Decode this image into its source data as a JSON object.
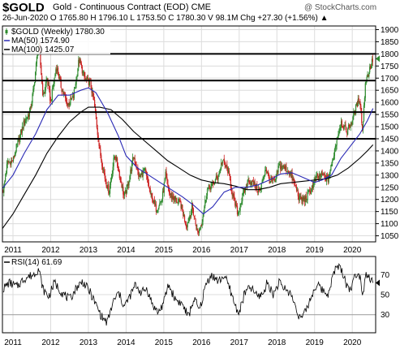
{
  "header": {
    "ticker": "$GOLD",
    "subtitle": "Gold - Continuous Contract (EOD) CME",
    "quote_line": "26-Jun-2020   O 1765.80  H 1796.10  L 1753.50  C 1780.30  V 98.1M  Chg +27.30 (+1.56%) ▲",
    "watermark": "@ StockCharts.com"
  },
  "colors": {
    "candle_up": "#2e8b2e",
    "candle_down": "#cc2222",
    "ma50": "#2a2ab5",
    "ma100": "#000000",
    "grid": "#dcdcdc",
    "rsi": "#000000"
  },
  "chart_data": [
    {
      "type": "candlestick",
      "legend": [
        {
          "label": "$GOLD (Weekly) 1780.30",
          "icon": "candle-icon"
        },
        {
          "label": "MA(50) 1574.90",
          "color": "#2a2ab5"
        },
        {
          "label": "MA(100) 1425.07",
          "color": "#000000"
        }
      ],
      "x_ticks": [
        "2011",
        "2012",
        "2013",
        "2014",
        "2015",
        "2016",
        "2017",
        "2018",
        "2019",
        "2020"
      ],
      "y_ticks": [
        1050,
        1100,
        1150,
        1200,
        1250,
        1300,
        1350,
        1400,
        1450,
        1500,
        1550,
        1600,
        1650,
        1700,
        1750,
        1800,
        1850,
        1900
      ],
      "ylim": [
        1025,
        1915
      ],
      "xlim": [
        2010.72,
        2020.62
      ],
      "horizontal_lines": [
        1800,
        1690,
        1560,
        1450
      ],
      "price_path": [
        [
          2010.75,
          1240
        ],
        [
          2010.85,
          1350
        ],
        [
          2011.0,
          1360
        ],
        [
          2011.1,
          1420
        ],
        [
          2011.3,
          1520
        ],
        [
          2011.45,
          1560
        ],
        [
          2011.55,
          1660
        ],
        [
          2011.68,
          1850
        ],
        [
          2011.8,
          1620
        ],
        [
          2011.9,
          1700
        ],
        [
          2012.0,
          1600
        ],
        [
          2012.15,
          1750
        ],
        [
          2012.3,
          1650
        ],
        [
          2012.45,
          1590
        ],
        [
          2012.6,
          1620
        ],
        [
          2012.75,
          1775
        ],
        [
          2012.9,
          1700
        ],
        [
          2013.05,
          1680
        ],
        [
          2013.15,
          1600
        ],
        [
          2013.3,
          1400
        ],
        [
          2013.45,
          1280
        ],
        [
          2013.55,
          1230
        ],
        [
          2013.7,
          1390
        ],
        [
          2013.8,
          1320
        ],
        [
          2013.95,
          1210
        ],
        [
          2014.05,
          1260
        ],
        [
          2014.2,
          1380
        ],
        [
          2014.35,
          1290
        ],
        [
          2014.5,
          1320
        ],
        [
          2014.65,
          1220
        ],
        [
          2014.8,
          1160
        ],
        [
          2014.95,
          1200
        ],
        [
          2015.05,
          1300
        ],
        [
          2015.15,
          1220
        ],
        [
          2015.3,
          1200
        ],
        [
          2015.45,
          1180
        ],
        [
          2015.6,
          1090
        ],
        [
          2015.75,
          1170
        ],
        [
          2015.9,
          1060
        ],
        [
          2016.0,
          1100
        ],
        [
          2016.15,
          1240
        ],
        [
          2016.3,
          1260
        ],
        [
          2016.45,
          1300
        ],
        [
          2016.55,
          1360
        ],
        [
          2016.7,
          1320
        ],
        [
          2016.85,
          1200
        ],
        [
          2016.97,
          1140
        ],
        [
          2017.1,
          1220
        ],
        [
          2017.25,
          1280
        ],
        [
          2017.4,
          1260
        ],
        [
          2017.55,
          1230
        ],
        [
          2017.7,
          1330
        ],
        [
          2017.8,
          1280
        ],
        [
          2017.95,
          1270
        ],
        [
          2018.05,
          1340
        ],
        [
          2018.2,
          1330
        ],
        [
          2018.35,
          1310
        ],
        [
          2018.5,
          1250
        ],
        [
          2018.6,
          1200
        ],
        [
          2018.75,
          1200
        ],
        [
          2018.9,
          1240
        ],
        [
          2019.05,
          1290
        ],
        [
          2019.2,
          1300
        ],
        [
          2019.35,
          1280
        ],
        [
          2019.45,
          1340
        ],
        [
          2019.55,
          1420
        ],
        [
          2019.7,
          1520
        ],
        [
          2019.85,
          1480
        ],
        [
          2019.97,
          1515
        ],
        [
          2020.1,
          1580
        ],
        [
          2020.2,
          1620
        ],
        [
          2020.27,
          1480
        ],
        [
          2020.35,
          1690
        ],
        [
          2020.45,
          1730
        ],
        [
          2020.55,
          1780
        ]
      ],
      "ma50_path": [
        [
          2010.72,
          1245
        ],
        [
          2011.0,
          1300
        ],
        [
          2011.3,
          1390
        ],
        [
          2011.6,
          1470
        ],
        [
          2011.9,
          1570
        ],
        [
          2012.2,
          1630
        ],
        [
          2012.5,
          1630
        ],
        [
          2012.8,
          1650
        ],
        [
          2013.0,
          1660
        ],
        [
          2013.2,
          1640
        ],
        [
          2013.5,
          1560
        ],
        [
          2013.8,
          1460
        ],
        [
          2014.0,
          1380
        ],
        [
          2014.3,
          1330
        ],
        [
          2014.6,
          1300
        ],
        [
          2014.9,
          1270
        ],
        [
          2015.2,
          1240
        ],
        [
          2015.5,
          1210
        ],
        [
          2015.8,
          1175
        ],
        [
          2016.05,
          1140
        ],
        [
          2016.3,
          1170
        ],
        [
          2016.6,
          1230
        ],
        [
          2016.9,
          1250
        ],
        [
          2017.2,
          1250
        ],
        [
          2017.5,
          1260
        ],
        [
          2017.8,
          1280
        ],
        [
          2018.1,
          1305
        ],
        [
          2018.4,
          1310
        ],
        [
          2018.7,
          1290
        ],
        [
          2019.0,
          1270
        ],
        [
          2019.2,
          1280
        ],
        [
          2019.45,
          1300
        ],
        [
          2019.7,
          1370
        ],
        [
          2019.95,
          1420
        ],
        [
          2020.2,
          1470
        ],
        [
          2020.4,
          1525
        ],
        [
          2020.55,
          1575
        ]
      ],
      "ma100_path": [
        [
          2010.72,
          1080
        ],
        [
          2011.0,
          1140
        ],
        [
          2011.3,
          1220
        ],
        [
          2011.6,
          1300
        ],
        [
          2011.9,
          1390
        ],
        [
          2012.2,
          1460
        ],
        [
          2012.5,
          1520
        ],
        [
          2012.8,
          1560
        ],
        [
          2013.0,
          1580
        ],
        [
          2013.3,
          1580
        ],
        [
          2013.6,
          1570
        ],
        [
          2013.9,
          1530
        ],
        [
          2014.2,
          1480
        ],
        [
          2014.5,
          1440
        ],
        [
          2014.8,
          1400
        ],
        [
          2015.1,
          1360
        ],
        [
          2015.4,
          1330
        ],
        [
          2015.7,
          1300
        ],
        [
          2016.0,
          1280
        ],
        [
          2016.3,
          1270
        ],
        [
          2016.6,
          1265
        ],
        [
          2016.9,
          1255
        ],
        [
          2017.2,
          1240
        ],
        [
          2017.5,
          1240
        ],
        [
          2017.8,
          1250
        ],
        [
          2018.1,
          1265
        ],
        [
          2018.4,
          1270
        ],
        [
          2018.7,
          1275
        ],
        [
          2019.0,
          1280
        ],
        [
          2019.3,
          1285
        ],
        [
          2019.6,
          1300
        ],
        [
          2019.9,
          1330
        ],
        [
          2020.2,
          1370
        ],
        [
          2020.4,
          1400
        ],
        [
          2020.55,
          1425
        ]
      ]
    },
    {
      "type": "line",
      "legend": [
        {
          "label": "RSI(14) 61.69"
        }
      ],
      "y_ticks": [
        30,
        50,
        70
      ],
      "ylim": [
        12,
        88
      ],
      "xlim": [
        2010.72,
        2020.62
      ],
      "x_ticks": [
        "2011",
        "2012",
        "2013",
        "2014",
        "2015",
        "2016",
        "2017",
        "2018",
        "2019",
        "2020"
      ],
      "reference_lines": [
        30,
        70
      ],
      "rsi_path": [
        [
          2010.72,
          55
        ],
        [
          2010.9,
          62
        ],
        [
          2011.1,
          58
        ],
        [
          2011.3,
          66
        ],
        [
          2011.55,
          70
        ],
        [
          2011.68,
          76
        ],
        [
          2011.8,
          55
        ],
        [
          2011.95,
          48
        ],
        [
          2012.1,
          62
        ],
        [
          2012.3,
          52
        ],
        [
          2012.5,
          45
        ],
        [
          2012.7,
          58
        ],
        [
          2012.85,
          63
        ],
        [
          2013.05,
          52
        ],
        [
          2013.2,
          40
        ],
        [
          2013.35,
          28
        ],
        [
          2013.5,
          22
        ],
        [
          2013.65,
          42
        ],
        [
          2013.8,
          52
        ],
        [
          2013.95,
          38
        ],
        [
          2014.1,
          48
        ],
        [
          2014.25,
          60
        ],
        [
          2014.4,
          52
        ],
        [
          2014.55,
          56
        ],
        [
          2014.7,
          40
        ],
        [
          2014.85,
          32
        ],
        [
          2015.0,
          42
        ],
        [
          2015.12,
          60
        ],
        [
          2015.3,
          46
        ],
        [
          2015.5,
          40
        ],
        [
          2015.65,
          28
        ],
        [
          2015.8,
          46
        ],
        [
          2015.95,
          34
        ],
        [
          2016.1,
          58
        ],
        [
          2016.25,
          70
        ],
        [
          2016.45,
          63
        ],
        [
          2016.6,
          69
        ],
        [
          2016.75,
          56
        ],
        [
          2016.9,
          38
        ],
        [
          2017.0,
          32
        ],
        [
          2017.15,
          52
        ],
        [
          2017.3,
          57
        ],
        [
          2017.5,
          48
        ],
        [
          2017.65,
          52
        ],
        [
          2017.75,
          63
        ],
        [
          2017.9,
          50
        ],
        [
          2018.05,
          62
        ],
        [
          2018.2,
          56
        ],
        [
          2018.35,
          52
        ],
        [
          2018.5,
          38
        ],
        [
          2018.62,
          26
        ],
        [
          2018.75,
          32
        ],
        [
          2018.9,
          47
        ],
        [
          2019.05,
          60
        ],
        [
          2019.2,
          55
        ],
        [
          2019.35,
          50
        ],
        [
          2019.45,
          64
        ],
        [
          2019.6,
          80
        ],
        [
          2019.75,
          72
        ],
        [
          2019.85,
          60
        ],
        [
          2019.95,
          55
        ],
        [
          2020.05,
          66
        ],
        [
          2020.15,
          74
        ],
        [
          2020.22,
          66
        ],
        [
          2020.28,
          48
        ],
        [
          2020.35,
          72
        ],
        [
          2020.45,
          67
        ],
        [
          2020.55,
          61.69
        ]
      ]
    }
  ]
}
